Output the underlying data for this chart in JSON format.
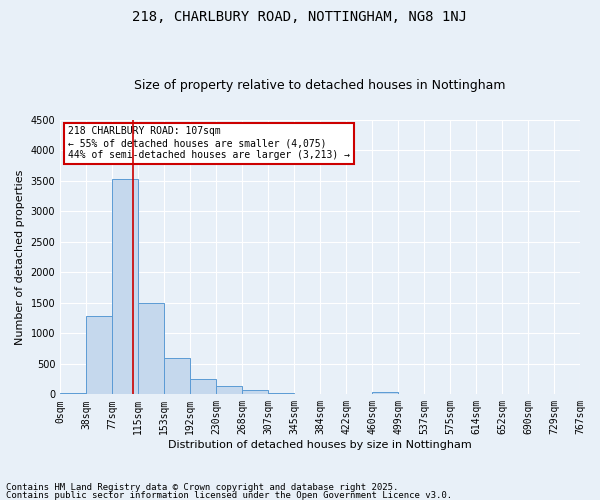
{
  "title1": "218, CHARLBURY ROAD, NOTTINGHAM, NG8 1NJ",
  "title2": "Size of property relative to detached houses in Nottingham",
  "xlabel": "Distribution of detached houses by size in Nottingham",
  "ylabel": "Number of detached properties",
  "bar_values": [
    30,
    1280,
    3530,
    1490,
    600,
    250,
    130,
    75,
    30,
    5,
    0,
    0,
    40,
    0,
    0,
    0,
    0,
    0,
    0,
    0
  ],
  "bin_labels": [
    "0sqm",
    "38sqm",
    "77sqm",
    "115sqm",
    "153sqm",
    "192sqm",
    "230sqm",
    "268sqm",
    "307sqm",
    "345sqm",
    "384sqm",
    "422sqm",
    "460sqm",
    "499sqm",
    "537sqm",
    "575sqm",
    "614sqm",
    "652sqm",
    "690sqm",
    "729sqm",
    "767sqm"
  ],
  "bar_color": "#c5d8ed",
  "bar_edge_color": "#5b9bd5",
  "vline_color": "#cc0000",
  "annotation_text": "218 CHARLBURY ROAD: 107sqm\n← 55% of detached houses are smaller (4,075)\n44% of semi-detached houses are larger (3,213) →",
  "annotation_box_color": "#ffffff",
  "annotation_box_edge": "#cc0000",
  "ylim": [
    0,
    4500
  ],
  "yticks": [
    0,
    500,
    1000,
    1500,
    2000,
    2500,
    3000,
    3500,
    4000,
    4500
  ],
  "background_color": "#e8f0f8",
  "grid_color": "#ffffff",
  "footer1": "Contains HM Land Registry data © Crown copyright and database right 2025.",
  "footer2": "Contains public sector information licensed under the Open Government Licence v3.0.",
  "title1_fontsize": 10,
  "title2_fontsize": 9,
  "xlabel_fontsize": 8,
  "ylabel_fontsize": 8,
  "tick_fontsize": 7,
  "annotation_fontsize": 7,
  "footer_fontsize": 6.5
}
